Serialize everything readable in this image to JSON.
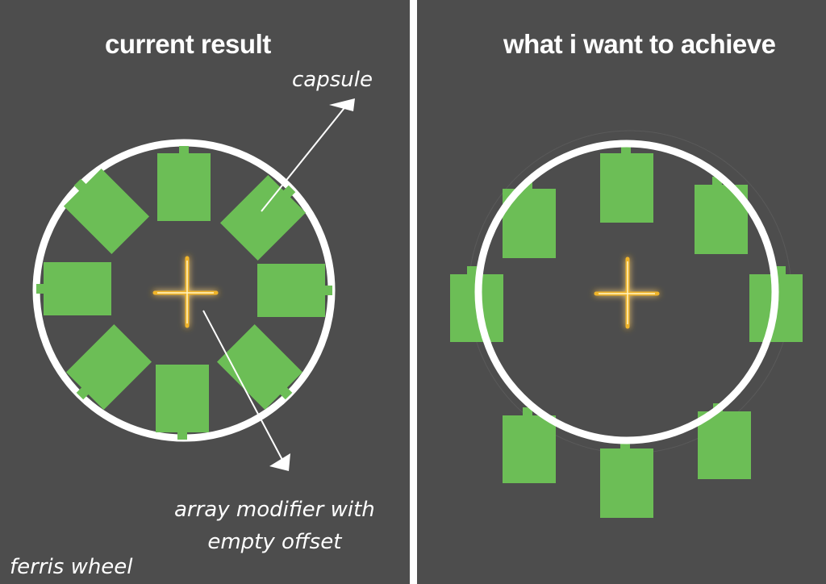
{
  "left_panel": {
    "title": "current result",
    "annotations": {
      "capsule": "capsule",
      "array_line1": "array modifier with",
      "array_line2": "empty offset",
      "ferris_wheel": "ferris wheel"
    }
  },
  "right_panel": {
    "title": "what i want to achieve"
  },
  "colors": {
    "background": "#4d4d4d",
    "divider": "#ffffff",
    "wheel_ring": "#ffffff",
    "capsule": "#6cbe56",
    "empty_cross": "#f0b429"
  }
}
